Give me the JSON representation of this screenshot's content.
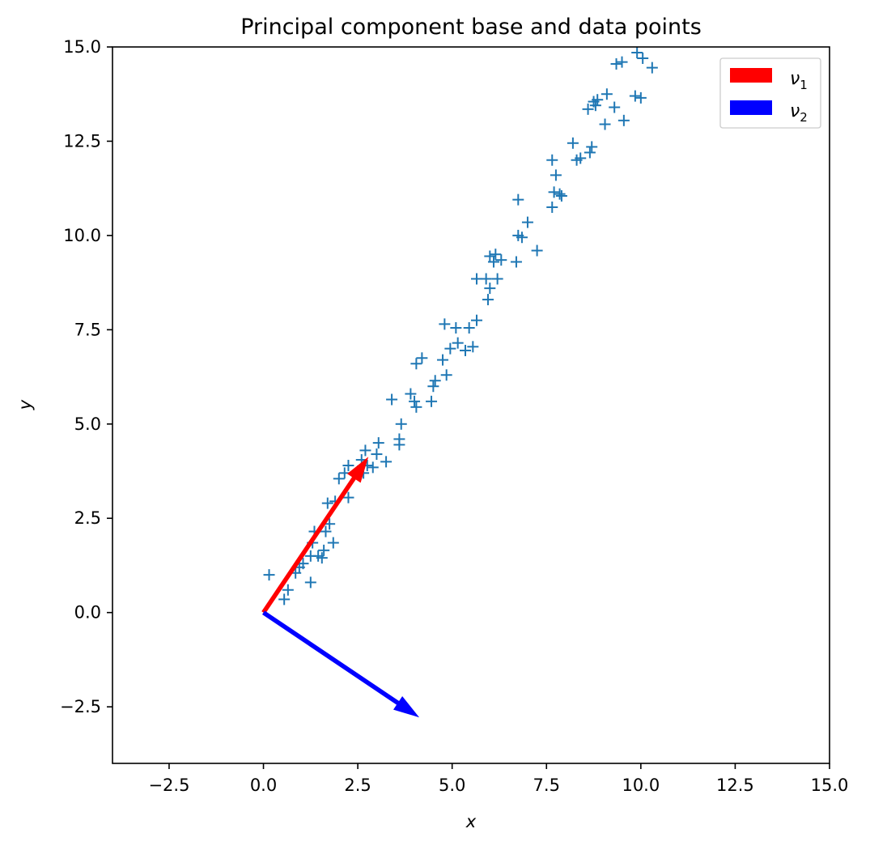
{
  "chart_data": {
    "type": "scatter",
    "title": "Principal component base and data points",
    "xlabel": "x",
    "ylabel": "y",
    "xlim": [
      -4,
      15
    ],
    "ylim": [
      -4,
      15
    ],
    "grid": false,
    "legend_position": "top-right",
    "x_ticks": [
      -2.5,
      0.0,
      2.5,
      5.0,
      7.5,
      10.0,
      12.5,
      15.0
    ],
    "x_tick_labels": [
      "−2.5",
      "0.0",
      "2.5",
      "5.0",
      "7.5",
      "10.0",
      "12.5",
      "15.0"
    ],
    "y_ticks": [
      -2.5,
      0.0,
      2.5,
      5.0,
      7.5,
      10.0,
      12.5,
      15.0
    ],
    "y_tick_labels": [
      "−2.5",
      "0.0",
      "2.5",
      "5.0",
      "7.5",
      "10.0",
      "12.5",
      "15.0"
    ],
    "marker": "+",
    "marker_color": "#1f77b4",
    "points": [
      [
        0.15,
        1.0
      ],
      [
        0.55,
        0.35
      ],
      [
        0.65,
        0.6
      ],
      [
        0.85,
        1.05
      ],
      [
        0.95,
        1.2
      ],
      [
        1.05,
        1.3
      ],
      [
        1.25,
        0.8
      ],
      [
        1.25,
        1.5
      ],
      [
        1.3,
        1.85
      ],
      [
        1.35,
        2.15
      ],
      [
        1.45,
        1.5
      ],
      [
        1.55,
        1.45
      ],
      [
        1.6,
        1.65
      ],
      [
        1.65,
        2.15
      ],
      [
        1.7,
        2.9
      ],
      [
        1.75,
        2.35
      ],
      [
        1.85,
        1.85
      ],
      [
        1.9,
        2.95
      ],
      [
        2.0,
        3.55
      ],
      [
        2.15,
        3.7
      ],
      [
        2.25,
        3.05
      ],
      [
        2.25,
        3.9
      ],
      [
        2.5,
        3.75
      ],
      [
        2.6,
        4.05
      ],
      [
        2.65,
        3.7
      ],
      [
        2.7,
        4.3
      ],
      [
        2.75,
        3.9
      ],
      [
        2.9,
        3.85
      ],
      [
        3.0,
        4.2
      ],
      [
        3.05,
        4.5
      ],
      [
        3.25,
        4.0
      ],
      [
        3.4,
        5.65
      ],
      [
        3.6,
        4.45
      ],
      [
        3.6,
        4.6
      ],
      [
        3.65,
        5.0
      ],
      [
        3.9,
        5.8
      ],
      [
        4.0,
        5.6
      ],
      [
        4.05,
        5.45
      ],
      [
        4.05,
        6.6
      ],
      [
        4.2,
        6.75
      ],
      [
        4.45,
        5.6
      ],
      [
        4.5,
        6.0
      ],
      [
        4.55,
        6.15
      ],
      [
        4.75,
        6.7
      ],
      [
        4.8,
        7.65
      ],
      [
        4.85,
        6.3
      ],
      [
        4.95,
        7.0
      ],
      [
        5.1,
        7.55
      ],
      [
        5.15,
        7.15
      ],
      [
        5.35,
        6.95
      ],
      [
        5.45,
        7.55
      ],
      [
        5.55,
        7.05
      ],
      [
        5.65,
        7.75
      ],
      [
        5.65,
        8.85
      ],
      [
        5.9,
        8.85
      ],
      [
        5.95,
        8.3
      ],
      [
        6.0,
        8.6
      ],
      [
        6.0,
        9.45
      ],
      [
        6.1,
        9.3
      ],
      [
        6.15,
        9.5
      ],
      [
        6.2,
        8.85
      ],
      [
        6.3,
        9.35
      ],
      [
        6.7,
        9.3
      ],
      [
        6.75,
        10.95
      ],
      [
        6.75,
        10.0
      ],
      [
        6.85,
        9.95
      ],
      [
        7.0,
        10.35
      ],
      [
        7.25,
        9.6
      ],
      [
        7.65,
        10.75
      ],
      [
        7.65,
        12.0
      ],
      [
        7.7,
        11.15
      ],
      [
        7.75,
        11.6
      ],
      [
        7.85,
        11.1
      ],
      [
        7.9,
        11.05
      ],
      [
        8.2,
        12.45
      ],
      [
        8.3,
        12.0
      ],
      [
        8.4,
        12.05
      ],
      [
        8.6,
        13.35
      ],
      [
        8.65,
        12.2
      ],
      [
        8.7,
        12.35
      ],
      [
        8.75,
        13.55
      ],
      [
        8.8,
        13.45
      ],
      [
        8.85,
        13.6
      ],
      [
        9.05,
        12.95
      ],
      [
        9.1,
        13.75
      ],
      [
        9.3,
        13.4
      ],
      [
        9.35,
        14.55
      ],
      [
        9.5,
        14.6
      ],
      [
        9.55,
        13.05
      ],
      [
        9.85,
        13.7
      ],
      [
        9.9,
        14.85
      ],
      [
        10.0,
        13.65
      ],
      [
        10.05,
        14.7
      ],
      [
        10.3,
        14.45
      ]
    ],
    "vectors": [
      {
        "name": "v1",
        "label_main": "ν",
        "label_sub": "1",
        "from": [
          0,
          0
        ],
        "to": [
          2.78,
          4.13
        ],
        "color": "#ff0000"
      },
      {
        "name": "v2",
        "label_main": "ν",
        "label_sub": "2",
        "from": [
          0,
          0
        ],
        "to": [
          4.13,
          -2.78
        ],
        "color": "#0000ff"
      }
    ]
  }
}
